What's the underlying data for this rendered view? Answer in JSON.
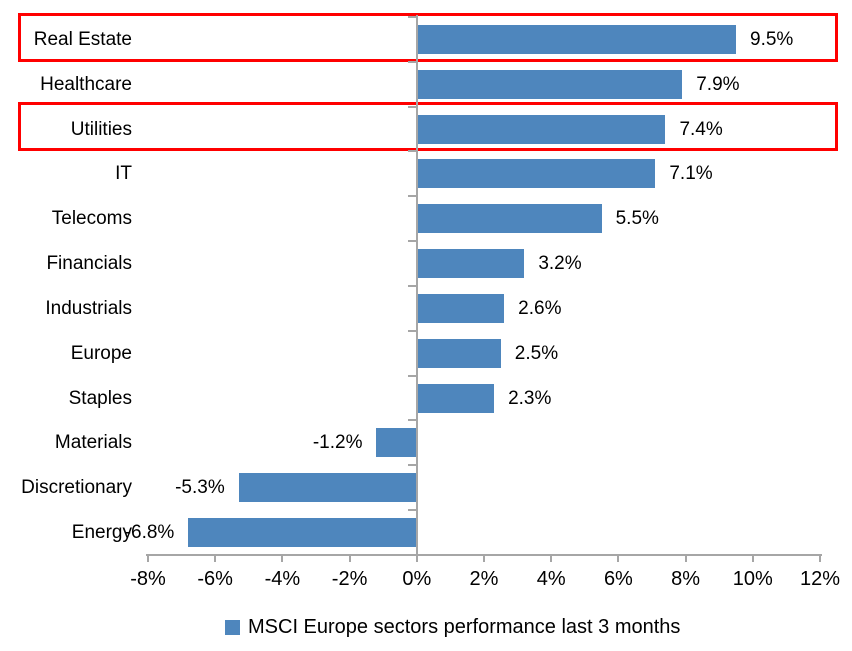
{
  "chart_data": {
    "type": "bar",
    "orientation": "horizontal",
    "title": "",
    "categories": [
      "Real Estate",
      "Healthcare",
      "Utilities",
      "IT",
      "Telecoms",
      "Financials",
      "Industrials",
      "Europe",
      "Staples",
      "Materials",
      "Discretionary",
      "Energy"
    ],
    "series": [
      {
        "name": "MSCI Europe sectors performance last 3 months",
        "values": [
          9.5,
          7.9,
          7.4,
          7.1,
          5.5,
          3.2,
          2.6,
          2.5,
          2.3,
          -1.2,
          -5.3,
          -6.8
        ]
      }
    ],
    "value_labels": [
      "9.5%",
      "7.9%",
      "7.4%",
      "7.1%",
      "5.5%",
      "3.2%",
      "2.6%",
      "2.5%",
      "2.3%",
      "-1.2%",
      "-5.3%",
      "-6.8%"
    ],
    "xlim": [
      -8,
      12
    ],
    "x_tick_values": [
      -8,
      -6,
      -4,
      -2,
      0,
      2,
      4,
      6,
      8,
      10,
      12
    ],
    "x_tick_labels": [
      "-8%",
      "-6%",
      "-4%",
      "-2%",
      "0%",
      "2%",
      "4%",
      "6%",
      "8%",
      "10%",
      "12%"
    ],
    "grid": false,
    "legend": {
      "position": "bottom",
      "marker": "square-icon",
      "label": "MSCI Europe sectors performance last 3 months"
    },
    "highlighted_categories": [
      "Real Estate",
      "Utilities"
    ],
    "colors": {
      "bar": "#4E86BD",
      "highlight_box": "#FF0000",
      "axis": "#A6A6A6",
      "text": "#000000",
      "background": "#FFFFFF"
    }
  }
}
